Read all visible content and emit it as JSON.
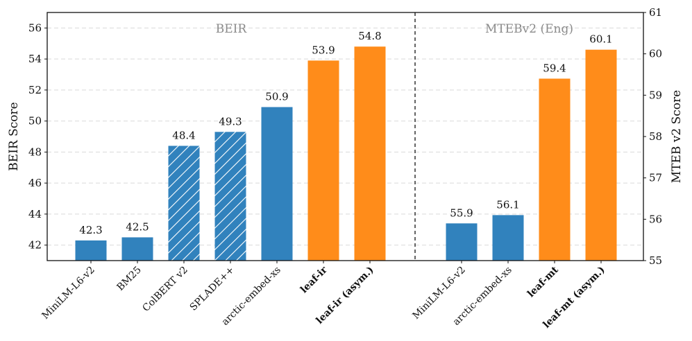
{
  "chart_data": {
    "type": "bar",
    "panels": [
      {
        "title": "BEIR",
        "ylabel": "BEIR Score",
        "axis": "left",
        "ylim": [
          41,
          57
        ],
        "yticks": [
          42,
          44,
          46,
          48,
          50,
          52,
          54,
          56
        ],
        "bars": [
          {
            "category": "MiniLM-L6-v2",
            "value": 42.3,
            "label": "42.3",
            "color": "#3182bd",
            "hatch": false,
            "bold": false
          },
          {
            "category": "BM25",
            "value": 42.5,
            "label": "42.5",
            "color": "#3182bd",
            "hatch": false,
            "bold": false
          },
          {
            "category": "ColBERT v2",
            "value": 48.4,
            "label": "48.4",
            "color": "#3182bd",
            "hatch": true,
            "bold": false
          },
          {
            "category": "SPLADE++",
            "value": 49.3,
            "label": "49.3",
            "color": "#3182bd",
            "hatch": true,
            "bold": false
          },
          {
            "category": "arctic-embed-xs",
            "value": 50.9,
            "label": "50.9",
            "color": "#3182bd",
            "hatch": false,
            "bold": false
          },
          {
            "category": "leaf-ir",
            "value": 53.9,
            "label": "53.9",
            "color": "#ff8c1a",
            "hatch": false,
            "bold": true
          },
          {
            "category": "leaf-ir (asym.)",
            "value": 54.8,
            "label": "54.8",
            "color": "#ff8c1a",
            "hatch": false,
            "bold": true
          }
        ]
      },
      {
        "title": "MTEBv2 (Eng)",
        "ylabel": "MTEB v2 Score",
        "axis": "right",
        "ylim": [
          55,
          61
        ],
        "yticks": [
          55,
          56,
          57,
          58,
          59,
          60,
          61
        ],
        "bars": [
          {
            "category": "MiniLM-L6-v2",
            "value": 55.9,
            "label": "55.9",
            "color": "#3182bd",
            "hatch": false,
            "bold": false
          },
          {
            "category": "arctic-embed-xs",
            "value": 56.1,
            "label": "56.1",
            "color": "#3182bd",
            "hatch": false,
            "bold": false
          },
          {
            "category": "leaf-mt",
            "value": 59.4,
            "label": "59.4",
            "color": "#ff8c1a",
            "hatch": false,
            "bold": true
          },
          {
            "category": "leaf-mt (asym.)",
            "value": 60.1,
            "label": "60.1",
            "color": "#ff8c1a",
            "hatch": false,
            "bold": true
          }
        ]
      }
    ],
    "grid": "horizontal dashed",
    "separator": "vertical dashed line between panels"
  }
}
